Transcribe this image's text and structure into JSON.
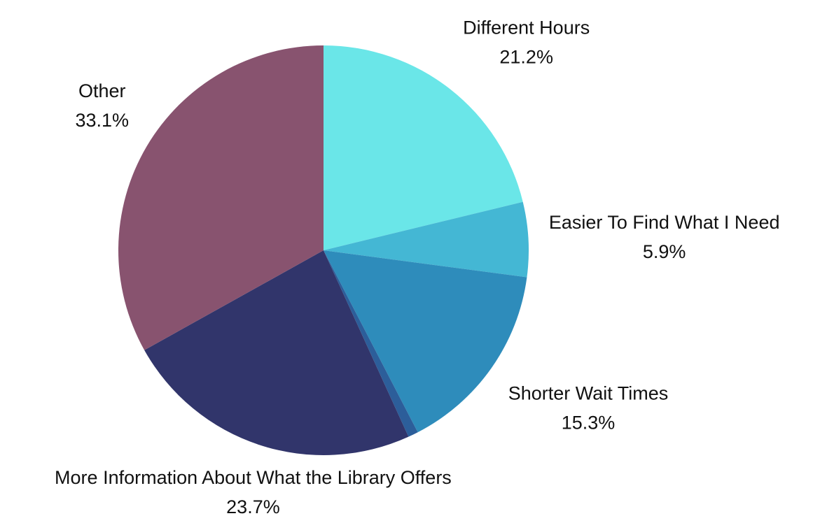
{
  "chart_data": {
    "type": "pie",
    "categories": [
      "Different Hours",
      "Easier To Find What I Need",
      "Shorter Wait Times",
      null,
      "More Information About What the Library Offers",
      "Other"
    ],
    "values": [
      21.2,
      5.9,
      15.3,
      0.8,
      23.7,
      33.1
    ],
    "value_labels": [
      "21.2%",
      "5.9%",
      "15.3%",
      null,
      "23.7%",
      "33.1%"
    ],
    "colors": [
      "#6ae6e8",
      "#44b7d4",
      "#2e8cbb",
      "#2c5e9a",
      "#31356b",
      "#88536f"
    ]
  }
}
